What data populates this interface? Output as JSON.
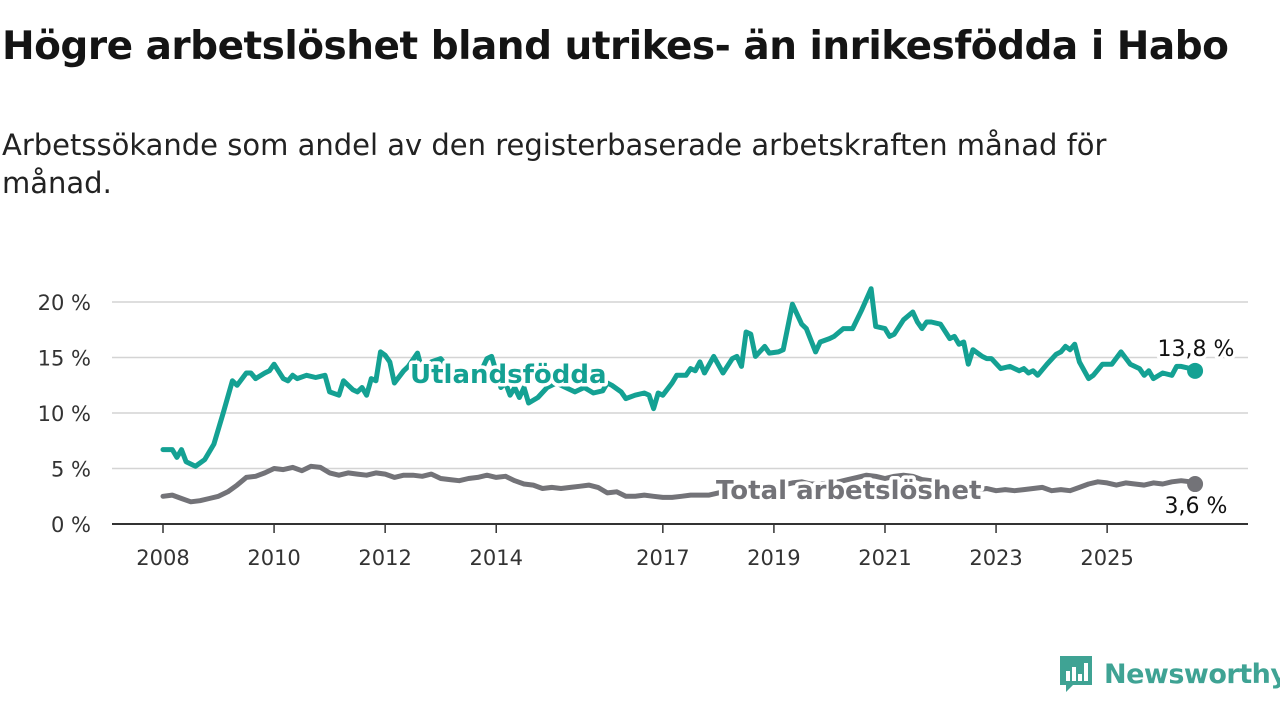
{
  "header": {
    "title": "Högre arbetslöshet bland utrikes- än inrikesfödda i Habo",
    "subtitle": "Arbetssökande som andel av den registerbaserade arbetskraften månad för månad."
  },
  "brand": {
    "name": "Newsworthy",
    "color": "#3fa394",
    "icon": "bar-chart-icon"
  },
  "colors": {
    "utlandsfodda": "#14a193",
    "total": "#737378",
    "grid": "#d4d4d4",
    "axis": "#333333"
  },
  "chart_data": {
    "type": "line",
    "title": "Högre arbetslöshet bland utrikes- än inrikesfödda i Habo",
    "xlabel": "",
    "ylabel": "",
    "ylim": [
      0,
      20
    ],
    "yticks": [
      0,
      5,
      10,
      15,
      20
    ],
    "ytick_labels": [
      "0 %",
      "5 %",
      "10 %",
      "15 %",
      "20 %"
    ],
    "xticks": [
      2008,
      2010,
      2012,
      2014,
      2017,
      2019,
      2021,
      2023,
      2025
    ],
    "xtick_labels": [
      "2008",
      "2010",
      "2012",
      "2014",
      "2017",
      "2019",
      "2021",
      "2023",
      "2025"
    ],
    "grid": true,
    "legend": "inline labels on lines",
    "series": [
      {
        "name": "Utlandsfödda",
        "color": "#14a193",
        "end_label": "13,8 %",
        "points": [
          [
            "2008-01",
            6.7
          ],
          [
            "2008-03",
            6.7
          ],
          [
            "2008-04",
            6.0
          ],
          [
            "2008-05",
            6.7
          ],
          [
            "2008-06",
            5.6
          ],
          [
            "2008-08",
            5.2
          ],
          [
            "2008-10",
            5.8
          ],
          [
            "2008-12",
            7.2
          ],
          [
            "2009-02",
            10.0
          ],
          [
            "2009-04",
            12.9
          ],
          [
            "2009-05",
            12.5
          ],
          [
            "2009-07",
            13.6
          ],
          [
            "2009-08",
            13.6
          ],
          [
            "2009-09",
            13.1
          ],
          [
            "2009-11",
            13.6
          ],
          [
            "2009-12",
            13.8
          ],
          [
            "2010-01",
            14.4
          ],
          [
            "2010-03",
            13.1
          ],
          [
            "2010-04",
            12.9
          ],
          [
            "2010-05",
            13.4
          ],
          [
            "2010-06",
            13.1
          ],
          [
            "2010-08",
            13.4
          ],
          [
            "2010-10",
            13.2
          ],
          [
            "2010-12",
            13.4
          ],
          [
            "2011-01",
            11.9
          ],
          [
            "2011-03",
            11.6
          ],
          [
            "2011-04",
            12.9
          ],
          [
            "2011-06",
            12.1
          ],
          [
            "2011-07",
            11.9
          ],
          [
            "2011-08",
            12.3
          ],
          [
            "2011-09",
            11.6
          ],
          [
            "2011-10",
            13.1
          ],
          [
            "2011-11",
            12.9
          ],
          [
            "2011-12",
            15.5
          ],
          [
            "2012-01",
            15.2
          ],
          [
            "2012-02",
            14.6
          ],
          [
            "2012-03",
            12.7
          ],
          [
            "2012-05",
            13.8
          ],
          [
            "2012-06",
            14.2
          ],
          [
            "2012-08",
            15.4
          ],
          [
            "2012-09",
            13.8
          ],
          [
            "2012-11",
            14.6
          ],
          [
            "2013-01",
            14.9
          ],
          [
            "2013-03",
            13.8
          ],
          [
            "2013-05",
            13.1
          ],
          [
            "2013-07",
            13.6
          ],
          [
            "2013-09",
            13.8
          ],
          [
            "2013-10",
            14.0
          ],
          [
            "2013-11",
            14.9
          ],
          [
            "2013-12",
            15.1
          ],
          [
            "2014-02",
            12.3
          ],
          [
            "2014-03",
            12.7
          ],
          [
            "2014-04",
            11.6
          ],
          [
            "2014-05",
            12.3
          ],
          [
            "2014-06",
            11.4
          ],
          [
            "2014-07",
            12.3
          ],
          [
            "2014-08",
            10.9
          ],
          [
            "2014-10",
            11.4
          ],
          [
            "2014-12",
            12.3
          ],
          [
            "2015-02",
            12.7
          ],
          [
            "2015-04",
            12.3
          ],
          [
            "2015-06",
            11.9
          ],
          [
            "2015-08",
            12.3
          ],
          [
            "2015-10",
            11.8
          ],
          [
            "2015-12",
            12.0
          ],
          [
            "2016-01",
            12.7
          ],
          [
            "2016-02",
            12.5
          ],
          [
            "2016-04",
            11.9
          ],
          [
            "2016-05",
            11.3
          ],
          [
            "2016-07",
            11.6
          ],
          [
            "2016-09",
            11.8
          ],
          [
            "2016-10",
            11.6
          ],
          [
            "2016-11",
            10.4
          ],
          [
            "2016-12",
            11.8
          ],
          [
            "2017-01",
            11.6
          ],
          [
            "2017-03",
            12.7
          ],
          [
            "2017-04",
            13.4
          ],
          [
            "2017-06",
            13.4
          ],
          [
            "2017-07",
            14.0
          ],
          [
            "2017-08",
            13.8
          ],
          [
            "2017-09",
            14.6
          ],
          [
            "2017-10",
            13.6
          ],
          [
            "2017-12",
            15.1
          ],
          [
            "2018-02",
            13.6
          ],
          [
            "2018-04",
            14.9
          ],
          [
            "2018-05",
            15.1
          ],
          [
            "2018-06",
            14.2
          ],
          [
            "2018-07",
            17.3
          ],
          [
            "2018-08",
            17.1
          ],
          [
            "2018-09",
            15.1
          ],
          [
            "2018-11",
            16.0
          ],
          [
            "2018-12",
            15.4
          ],
          [
            "2019-02",
            15.5
          ],
          [
            "2019-03",
            15.7
          ],
          [
            "2019-05",
            19.8
          ],
          [
            "2019-07",
            18.0
          ],
          [
            "2019-08",
            17.6
          ],
          [
            "2019-10",
            15.5
          ],
          [
            "2019-11",
            16.4
          ],
          [
            "2020-01",
            16.7
          ],
          [
            "2020-02",
            16.9
          ],
          [
            "2020-04",
            17.6
          ],
          [
            "2020-06",
            17.6
          ],
          [
            "2020-08",
            19.3
          ],
          [
            "2020-10",
            21.2
          ],
          [
            "2020-11",
            17.8
          ],
          [
            "2021-01",
            17.6
          ],
          [
            "2021-02",
            16.9
          ],
          [
            "2021-03",
            17.1
          ],
          [
            "2021-05",
            18.4
          ],
          [
            "2021-07",
            19.1
          ],
          [
            "2021-08",
            18.2
          ],
          [
            "2021-09",
            17.6
          ],
          [
            "2021-10",
            18.2
          ],
          [
            "2021-11",
            18.2
          ],
          [
            "2022-01",
            18.0
          ],
          [
            "2022-03",
            16.7
          ],
          [
            "2022-04",
            16.9
          ],
          [
            "2022-05",
            16.2
          ],
          [
            "2022-06",
            16.4
          ],
          [
            "2022-07",
            14.4
          ],
          [
            "2022-08",
            15.7
          ],
          [
            "2022-10",
            15.1
          ],
          [
            "2022-11",
            14.9
          ],
          [
            "2022-12",
            14.9
          ],
          [
            "2023-02",
            14.0
          ],
          [
            "2023-04",
            14.2
          ],
          [
            "2023-05",
            14.0
          ],
          [
            "2023-06",
            13.8
          ],
          [
            "2023-07",
            14.0
          ],
          [
            "2023-08",
            13.6
          ],
          [
            "2023-09",
            13.8
          ],
          [
            "2023-10",
            13.4
          ],
          [
            "2023-12",
            14.4
          ],
          [
            "2024-02",
            15.3
          ],
          [
            "2024-03",
            15.5
          ],
          [
            "2024-04",
            16.0
          ],
          [
            "2024-05",
            15.7
          ],
          [
            "2024-06",
            16.2
          ],
          [
            "2024-07",
            14.6
          ],
          [
            "2024-09",
            13.1
          ],
          [
            "2024-10",
            13.4
          ],
          [
            "2024-12",
            14.4
          ],
          [
            "2025-02",
            14.4
          ],
          [
            "2025-04",
            15.5
          ],
          [
            "2025-06",
            14.4
          ],
          [
            "2025-08",
            14.0
          ],
          [
            "2025-09",
            13.4
          ],
          [
            "2025-10",
            13.8
          ],
          [
            "2025-11",
            13.1
          ],
          [
            "2026-01",
            13.6
          ],
          [
            "2026-03",
            13.4
          ],
          [
            "2026-04",
            14.2
          ],
          [
            "2026-05",
            14.2
          ],
          [
            "2026-07",
            14.0
          ],
          [
            "2026-08",
            13.8
          ]
        ]
      },
      {
        "name": "Total arbetslöshet",
        "color": "#737378",
        "end_label": "3,6 %",
        "points": [
          [
            "2008-01",
            2.5
          ],
          [
            "2008-03",
            2.6
          ],
          [
            "2008-05",
            2.3
          ],
          [
            "2008-07",
            2.0
          ],
          [
            "2008-09",
            2.1
          ],
          [
            "2008-11",
            2.3
          ],
          [
            "2009-01",
            2.5
          ],
          [
            "2009-03",
            2.9
          ],
          [
            "2009-05",
            3.5
          ],
          [
            "2009-07",
            4.2
          ],
          [
            "2009-09",
            4.3
          ],
          [
            "2009-11",
            4.6
          ],
          [
            "2010-01",
            5.0
          ],
          [
            "2010-03",
            4.9
          ],
          [
            "2010-05",
            5.1
          ],
          [
            "2010-07",
            4.8
          ],
          [
            "2010-09",
            5.2
          ],
          [
            "2010-11",
            5.1
          ],
          [
            "2011-01",
            4.6
          ],
          [
            "2011-03",
            4.4
          ],
          [
            "2011-05",
            4.6
          ],
          [
            "2011-07",
            4.5
          ],
          [
            "2011-09",
            4.4
          ],
          [
            "2011-11",
            4.6
          ],
          [
            "2012-01",
            4.5
          ],
          [
            "2012-03",
            4.2
          ],
          [
            "2012-05",
            4.4
          ],
          [
            "2012-07",
            4.4
          ],
          [
            "2012-09",
            4.3
          ],
          [
            "2012-11",
            4.5
          ],
          [
            "2013-01",
            4.1
          ],
          [
            "2013-03",
            4.0
          ],
          [
            "2013-05",
            3.9
          ],
          [
            "2013-07",
            4.1
          ],
          [
            "2013-09",
            4.2
          ],
          [
            "2013-11",
            4.4
          ],
          [
            "2014-01",
            4.2
          ],
          [
            "2014-03",
            4.3
          ],
          [
            "2014-05",
            3.9
          ],
          [
            "2014-07",
            3.6
          ],
          [
            "2014-09",
            3.5
          ],
          [
            "2014-11",
            3.2
          ],
          [
            "2015-01",
            3.3
          ],
          [
            "2015-03",
            3.2
          ],
          [
            "2015-05",
            3.3
          ],
          [
            "2015-07",
            3.4
          ],
          [
            "2015-09",
            3.5
          ],
          [
            "2015-11",
            3.3
          ],
          [
            "2016-01",
            2.8
          ],
          [
            "2016-03",
            2.9
          ],
          [
            "2016-05",
            2.5
          ],
          [
            "2016-07",
            2.5
          ],
          [
            "2016-09",
            2.6
          ],
          [
            "2016-11",
            2.5
          ],
          [
            "2017-01",
            2.4
          ],
          [
            "2017-03",
            2.4
          ],
          [
            "2017-05",
            2.5
          ],
          [
            "2017-07",
            2.6
          ],
          [
            "2017-09",
            2.6
          ],
          [
            "2017-11",
            2.6
          ],
          [
            "2018-01",
            2.8
          ],
          [
            "2018-03",
            2.9
          ],
          [
            "2018-05",
            3.0
          ],
          [
            "2018-07",
            3.2
          ],
          [
            "2018-09",
            3.3
          ],
          [
            "2018-11",
            3.3
          ],
          [
            "2019-01",
            3.4
          ],
          [
            "2019-03",
            3.5
          ],
          [
            "2019-05",
            3.7
          ],
          [
            "2019-07",
            3.8
          ],
          [
            "2019-09",
            3.6
          ],
          [
            "2019-11",
            3.6
          ],
          [
            "2020-01",
            3.7
          ],
          [
            "2020-03",
            3.8
          ],
          [
            "2020-05",
            4.0
          ],
          [
            "2020-07",
            4.2
          ],
          [
            "2020-09",
            4.4
          ],
          [
            "2020-11",
            4.3
          ],
          [
            "2021-01",
            4.1
          ],
          [
            "2021-03",
            4.3
          ],
          [
            "2021-05",
            4.4
          ],
          [
            "2021-07",
            4.3
          ],
          [
            "2021-09",
            4.0
          ],
          [
            "2021-11",
            3.9
          ],
          [
            "2022-01",
            3.3
          ],
          [
            "2022-03",
            3.3
          ],
          [
            "2022-05",
            3.2
          ],
          [
            "2022-07",
            3.2
          ],
          [
            "2022-09",
            3.1
          ],
          [
            "2022-11",
            3.2
          ],
          [
            "2023-01",
            3.0
          ],
          [
            "2023-03",
            3.1
          ],
          [
            "2023-05",
            3.0
          ],
          [
            "2023-07",
            3.1
          ],
          [
            "2023-09",
            3.2
          ],
          [
            "2023-11",
            3.3
          ],
          [
            "2024-01",
            3.0
          ],
          [
            "2024-03",
            3.1
          ],
          [
            "2024-05",
            3.0
          ],
          [
            "2024-07",
            3.3
          ],
          [
            "2024-09",
            3.6
          ],
          [
            "2024-11",
            3.8
          ],
          [
            "2025-01",
            3.7
          ],
          [
            "2025-03",
            3.5
          ],
          [
            "2025-05",
            3.7
          ],
          [
            "2025-07",
            3.6
          ],
          [
            "2025-09",
            3.5
          ],
          [
            "2025-11",
            3.7
          ],
          [
            "2026-01",
            3.6
          ],
          [
            "2026-03",
            3.8
          ],
          [
            "2026-05",
            3.9
          ],
          [
            "2026-07",
            3.8
          ],
          [
            "2026-08",
            3.6
          ]
        ]
      }
    ]
  }
}
